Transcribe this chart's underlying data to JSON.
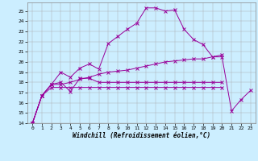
{
  "xlabel": "Windchill (Refroidissement éolien,°C)",
  "background_color": "#cceeff",
  "line_color": "#990099",
  "xlim": [
    -0.5,
    23.5
  ],
  "ylim": [
    14,
    25.8
  ],
  "yticks": [
    14,
    15,
    16,
    17,
    18,
    19,
    20,
    21,
    22,
    23,
    24,
    25
  ],
  "xticks": [
    0,
    1,
    2,
    3,
    4,
    5,
    6,
    7,
    8,
    9,
    10,
    11,
    12,
    13,
    14,
    15,
    16,
    17,
    18,
    19,
    20,
    21,
    22,
    23
  ],
  "series": [
    {
      "x": [
        0,
        1,
        2,
        3,
        4,
        5,
        6,
        7,
        8,
        9,
        10,
        11,
        12,
        13,
        14,
        15,
        16,
        17,
        18,
        19,
        20
      ],
      "y": [
        14,
        16.7,
        17.8,
        19.0,
        18.5,
        19.4,
        19.8,
        19.3,
        21.8,
        22.5,
        23.2,
        23.8,
        25.3,
        25.3,
        25.0,
        25.1,
        23.2,
        22.2,
        21.7,
        20.5,
        20.7
      ]
    },
    {
      "x": [
        0,
        1,
        2,
        3,
        4,
        5,
        6,
        7,
        8,
        9,
        10,
        11,
        12,
        13,
        14,
        15,
        16,
        17,
        18,
        19,
        20
      ],
      "y": [
        14,
        16.7,
        17.8,
        18.0,
        17.1,
        18.4,
        18.4,
        18.0,
        18.0,
        18.0,
        18.0,
        18.0,
        18.0,
        18.0,
        18.0,
        18.0,
        18.0,
        18.0,
        18.0,
        18.0,
        18.0
      ]
    },
    {
      "x": [
        0,
        1,
        2,
        3,
        4,
        5,
        6,
        7,
        8,
        9,
        10,
        11,
        12,
        13,
        14,
        15,
        16,
        17,
        18,
        19,
        20
      ],
      "y": [
        14,
        16.7,
        17.5,
        17.5,
        17.5,
        17.5,
        17.5,
        17.5,
        17.5,
        17.5,
        17.5,
        17.5,
        17.5,
        17.5,
        17.5,
        17.5,
        17.5,
        17.5,
        17.5,
        17.5,
        17.5
      ]
    },
    {
      "x": [
        0,
        1,
        2,
        3,
        4,
        5,
        6,
        7,
        8,
        9,
        10,
        11,
        12,
        13,
        14,
        15,
        16,
        17,
        18,
        19,
        20,
        21,
        22,
        23
      ],
      "y": [
        14,
        16.7,
        17.8,
        17.8,
        18.0,
        18.3,
        18.5,
        18.8,
        19.0,
        19.1,
        19.2,
        19.4,
        19.6,
        19.8,
        20.0,
        20.1,
        20.2,
        20.3,
        20.3,
        20.5,
        20.5,
        15.2,
        16.3,
        17.2
      ]
    }
  ]
}
